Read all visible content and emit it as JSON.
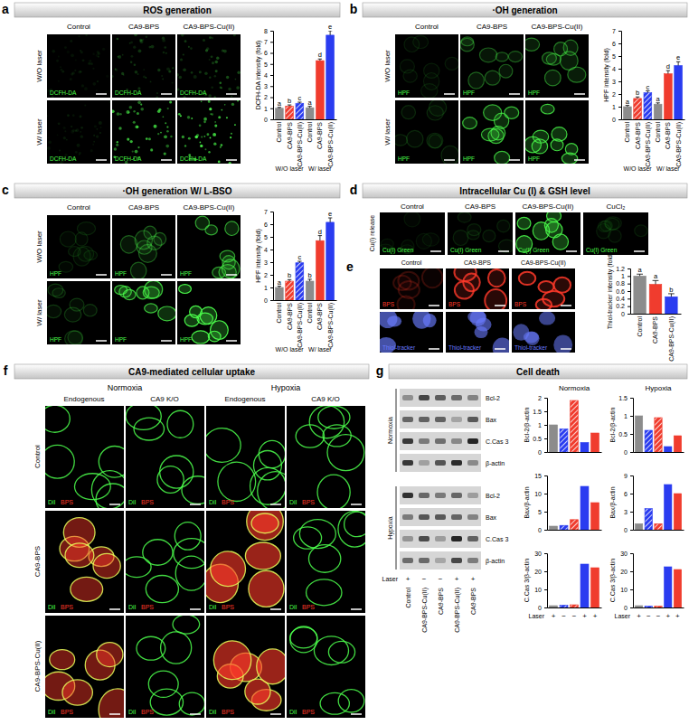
{
  "chart_data": [
    {
      "type": "bar",
      "y_label": "DCFH-DA intensity (fold)",
      "categories": [
        "Control",
        "CA9-BPS",
        "CA9-BPS-Cu(II)",
        "Control",
        "CA9-BPS",
        "CA9-BPS-Cu(II)"
      ],
      "group_labels": [
        "W/O laser",
        "W/ laser"
      ],
      "values": [
        1,
        1.2,
        1.45,
        1.05,
        5.3,
        7.6
      ],
      "errors": [
        0.08,
        0.1,
        0.1,
        0.12,
        0.15,
        0.4
      ],
      "annotations": [
        "a",
        "b",
        "c",
        "a",
        "d",
        "e"
      ],
      "colors": [
        "#8c8c8c",
        "#f03c2e",
        "#2a3cf0",
        "#8c8c8c",
        "#f03c2e",
        "#2a3cf0"
      ],
      "ylim": [
        0,
        8
      ],
      "yticks": [
        0,
        1,
        2,
        3,
        4,
        5,
        6,
        7,
        8
      ]
    },
    {
      "type": "bar",
      "y_label": "HPF intensity (fold)",
      "categories": [
        "Control",
        "CA9-BPS",
        "CA9-BPS-Cu(II)",
        "Control",
        "CA9-BPS",
        "CA9-BPS-Cu(II)"
      ],
      "group_labels": [
        "W/O laser",
        "W/ laser"
      ],
      "values": [
        1,
        1.65,
        2.1,
        1.2,
        3.6,
        4.25
      ],
      "errors": [
        0.1,
        0.12,
        0.15,
        0.1,
        0.25,
        0.3
      ],
      "annotations": [
        "a",
        "b",
        "c",
        "a",
        "d",
        "e"
      ],
      "colors": [
        "#8c8c8c",
        "#f03c2e",
        "#2a3cf0",
        "#8c8c8c",
        "#f03c2e",
        "#2a3cf0"
      ],
      "ylim": [
        0,
        7
      ],
      "yticks": [
        0,
        1,
        2,
        3,
        4,
        5,
        6,
        7
      ]
    },
    {
      "type": "bar",
      "y_label": "HPF intensity (fold)",
      "categories": [
        "Control",
        "CA9-BPS",
        "CA9-BPS-Cu(II)",
        "Control",
        "CA9-BPS",
        "CA9-BPS-Cu(II)"
      ],
      "group_labels": [
        "W/O laser",
        "W/ laser"
      ],
      "values": [
        1,
        1.5,
        2.95,
        1.5,
        4.7,
        6.15
      ],
      "errors": [
        0.1,
        0.12,
        0.12,
        0.15,
        0.4,
        0.35
      ],
      "annotations": [
        "a",
        "b",
        "c",
        "b",
        "d",
        "e"
      ],
      "colors": [
        "#8c8c8c",
        "#f03c2e",
        "#2a3cf0",
        "#8c8c8c",
        "#f03c2e",
        "#2a3cf0"
      ],
      "ylim": [
        0,
        7
      ],
      "yticks": [
        0,
        1,
        2,
        3,
        4,
        5,
        6,
        7
      ]
    },
    {
      "type": "bar",
      "y_label": "Thiol-tracker intensity (fold)",
      "categories": [
        "Control",
        "CA9-BPS",
        "CA9-BPS-Cu(II)"
      ],
      "values": [
        1,
        0.78,
        0.45
      ],
      "errors": [
        0.05,
        0.1,
        0.08
      ],
      "annotations": [
        "a",
        "a",
        "b"
      ],
      "colors": [
        "#8c8c8c",
        "#f03c2e",
        "#2a3cf0"
      ],
      "ylim": [
        0,
        1.2
      ],
      "yticks": [
        0,
        0.2,
        0.4,
        0.6,
        0.8,
        1,
        1.2
      ]
    },
    {
      "type": "bar",
      "y_label": "Bcl-2/β-actin",
      "categories": [
        null,
        null,
        null,
        null,
        null
      ],
      "values": [
        1,
        0.85,
        1.9,
        0.35,
        0.7
      ],
      "colors": [
        "#8c8c8c",
        "#2a3cf0",
        "#f03c2e",
        "#2a3cf0",
        "#f03c2e"
      ],
      "ylim": [
        0,
        2
      ],
      "yticks": [
        0,
        0.5,
        1,
        1.5,
        2
      ]
    },
    {
      "type": "bar",
      "y_label": "Bax/β-actin",
      "categories": [
        null,
        null,
        null,
        null,
        null
      ],
      "values": [
        1,
        1.2,
        2.8,
        12,
        7.5
      ],
      "colors": [
        "#8c8c8c",
        "#2a3cf0",
        "#f03c2e",
        "#2a3cf0",
        "#f03c2e"
      ],
      "ylim": [
        0,
        15
      ],
      "yticks": [
        0,
        5,
        10,
        15
      ]
    },
    {
      "type": "bar",
      "y_label": "C.Cas 3/β-actin",
      "categories": [
        null,
        null,
        null,
        null,
        null
      ],
      "values": [
        1,
        1.3,
        1.5,
        24,
        22
      ],
      "colors": [
        "#8c8c8c",
        "#2a3cf0",
        "#f03c2e",
        "#2a3cf0",
        "#f03c2e"
      ],
      "ylim": [
        0,
        30
      ],
      "yticks": [
        0,
        10,
        20,
        30
      ]
    },
    {
      "type": "bar",
      "y_label": "Bcl-2/β-actin",
      "categories": [
        null,
        null,
        null,
        null,
        null
      ],
      "values": [
        1,
        0.6,
        0.95,
        0.15,
        0.45
      ],
      "colors": [
        "#8c8c8c",
        "#2a3cf0",
        "#f03c2e",
        "#2a3cf0",
        "#f03c2e"
      ],
      "ylim": [
        0,
        1.5
      ],
      "yticks": [
        0,
        0.5,
        1,
        1.5
      ]
    },
    {
      "type": "bar",
      "y_label": "Bax/β-actin",
      "categories": [
        null,
        null,
        null,
        null,
        null
      ],
      "values": [
        1,
        3.5,
        1,
        7.5,
        6
      ],
      "colors": [
        "#8c8c8c",
        "#2a3cf0",
        "#f03c2e",
        "#2a3cf0",
        "#f03c2e"
      ],
      "ylim": [
        0,
        9
      ],
      "yticks": [
        0,
        3,
        6,
        9
      ]
    },
    {
      "type": "bar",
      "y_label": "C.Cas 3/β-actin",
      "categories": [
        null,
        null,
        null,
        null,
        null
      ],
      "values": [
        1,
        0.8,
        0.8,
        22.5,
        21
      ],
      "colors": [
        "#8c8c8c",
        "#2a3cf0",
        "#f03c2e",
        "#2a3cf0",
        "#f03c2e"
      ],
      "ylim": [
        0,
        30
      ],
      "yticks": [
        0,
        10,
        20,
        30
      ]
    }
  ],
  "panels": [
    {
      "letter": "a",
      "title": "ROS generation",
      "columns": [
        "Control",
        "CA9-BPS",
        "CA9-BPS-Cu(II)"
      ],
      "rows": [
        "W/O laser",
        "W/ laser"
      ],
      "stain": "DCFH-DA"
    },
    {
      "letter": "b",
      "title": "·OH generation",
      "columns": [
        "Control",
        "CA9-BPS",
        "CA9-BPS-Cu(II)"
      ],
      "rows": [
        "W/O laser",
        "W/ laser"
      ],
      "stain": "HPF"
    },
    {
      "letter": "c",
      "title": "·OH generation W/ L-BSO",
      "columns": [
        "Control",
        "CA9-BPS",
        "CA9-BPS-Cu(II)"
      ],
      "rows": [
        "W/O laser",
        "W/ laser"
      ],
      "stain": "HPF"
    },
    {
      "letter": "d",
      "title": "Intracellular Cu (I) & GSH level",
      "columns": [
        "Control",
        "CA9-BPS",
        "CA9-BPS-Cu(II)",
        "CuCl₂"
      ],
      "row_label": "Cu(I) release",
      "stain": "Cu(I) Green"
    },
    {
      "letter": "e",
      "columns": [
        "Control",
        "CA9-BPS",
        "CA9-BPS-Cu(II)"
      ],
      "stains": [
        "BPS",
        "Thiol-tracker"
      ]
    },
    {
      "letter": "f",
      "title": "CA9-mediated cellular uptake",
      "groups": [
        "Normoxia",
        "Hypoxia"
      ],
      "subgroups": [
        "Endogenous",
        "CA9 K/O"
      ],
      "rows": [
        "Control",
        "CA9-BPS",
        "CA9-BPS-Cu(II)"
      ],
      "stains": [
        "DiI",
        "BPS"
      ]
    },
    {
      "letter": "g",
      "title": "Cell death",
      "sections": [
        "Normoxia",
        "Hypoxia"
      ],
      "bands": [
        "Bcl-2",
        "Bax",
        "C.Cas 3",
        "β-actin"
      ],
      "lanes": [
        "Control",
        "CA9-BPS-Cu(II)",
        "CA9-BPS",
        "CA9-BPS-Cu(II)",
        "CA9-BPS"
      ],
      "laser_label": "Laser",
      "laser": [
        "+",
        "−",
        "−",
        "+",
        "+"
      ]
    }
  ]
}
